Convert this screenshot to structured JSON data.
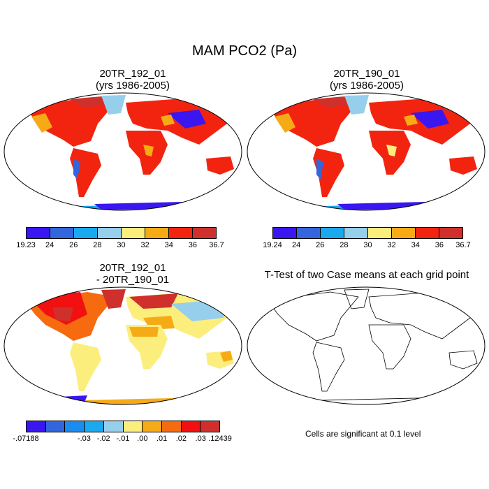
{
  "title": "MAM PCO2 (Pa)",
  "panels": [
    {
      "id": "p1",
      "line1": "20TR_192_01",
      "line2": "(yrs 1986-2005)",
      "colorbar": {
        "colors": [
          "#3a16f0",
          "#3366dd",
          "#1aa9ef",
          "#96cfec",
          "#fcee7d",
          "#f6ab16",
          "#f22410",
          "#d0302c"
        ],
        "labels": [
          "19.23",
          "24",
          "26",
          "28",
          "30",
          "32",
          "34",
          "36",
          "36.7"
        ]
      }
    },
    {
      "id": "p2",
      "line1": "20TR_190_01",
      "line2": "(yrs 1986-2005)",
      "colorbar": {
        "colors": [
          "#3a16f0",
          "#3366dd",
          "#1aa9ef",
          "#96cfec",
          "#fcee7d",
          "#f6ab16",
          "#f22410",
          "#d0302c"
        ],
        "labels": [
          "19.24",
          "24",
          "26",
          "28",
          "30",
          "32",
          "34",
          "36",
          "36.7"
        ]
      }
    },
    {
      "id": "p3",
      "line1": "20TR_192_01",
      "line2": "- 20TR_190_01",
      "colorbar": {
        "colors": [
          "#3a16f0",
          "#3366dd",
          "#1a8cef",
          "#1aa9ef",
          "#96cfec",
          "#fcee7d",
          "#f6ab16",
          "#f66a10",
          "#f21010",
          "#d0302c"
        ],
        "labels": [
          "-.07188",
          "-.03",
          "-.02",
          "-.01",
          ".00",
          ".01",
          ".02",
          ".03",
          ".12439"
        ]
      }
    },
    {
      "id": "p4",
      "line1": "T-Test of two Case means at each grid point",
      "line2": ""
    }
  ],
  "note": "Cells are significant at 0.1 level"
}
